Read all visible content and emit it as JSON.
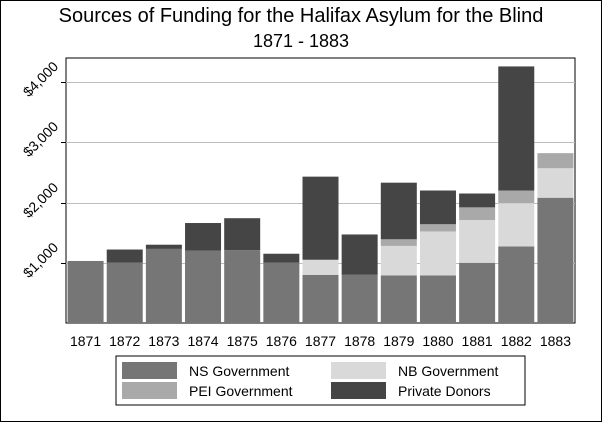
{
  "chart_data": {
    "type": "bar",
    "stacked": true,
    "title": "Sources of Funding for the Halifax Asylum for the Blind",
    "subtitle": "1871 - 1883",
    "xlabel": "",
    "ylabel": "",
    "categories": [
      "1871",
      "1872",
      "1873",
      "1874",
      "1875",
      "1876",
      "1877",
      "1878",
      "1879",
      "1880",
      "1881",
      "1882",
      "1883"
    ],
    "y_ticks": [
      {
        "value": 1000,
        "label": "$1,000"
      },
      {
        "value": 2000,
        "label": "$2,000"
      },
      {
        "value": 3000,
        "label": "$3,000"
      },
      {
        "value": 4000,
        "label": "$4,000"
      }
    ],
    "ylim": [
      0,
      4400
    ],
    "grid": true,
    "legend_position": "bottom",
    "series": [
      {
        "name": "NS Government",
        "color": "#767676",
        "values": [
          1030,
          1000,
          1230,
          1200,
          1210,
          1000,
          800,
          800,
          790,
          790,
          1000,
          1270,
          2080
        ]
      },
      {
        "name": "NB Government",
        "color": "#d9d9d9",
        "values": [
          0,
          0,
          0,
          0,
          0,
          0,
          250,
          0,
          490,
          730,
          710,
          720,
          490
        ]
      },
      {
        "name": "PEI Government",
        "color": "#a9a9a9",
        "values": [
          0,
          0,
          0,
          0,
          0,
          0,
          0,
          0,
          110,
          120,
          210,
          210,
          250
        ]
      },
      {
        "name": "Private Donors",
        "color": "#454545",
        "values": [
          0,
          220,
          70,
          460,
          530,
          150,
          1380,
          670,
          940,
          560,
          230,
          2060,
          0
        ]
      }
    ]
  }
}
